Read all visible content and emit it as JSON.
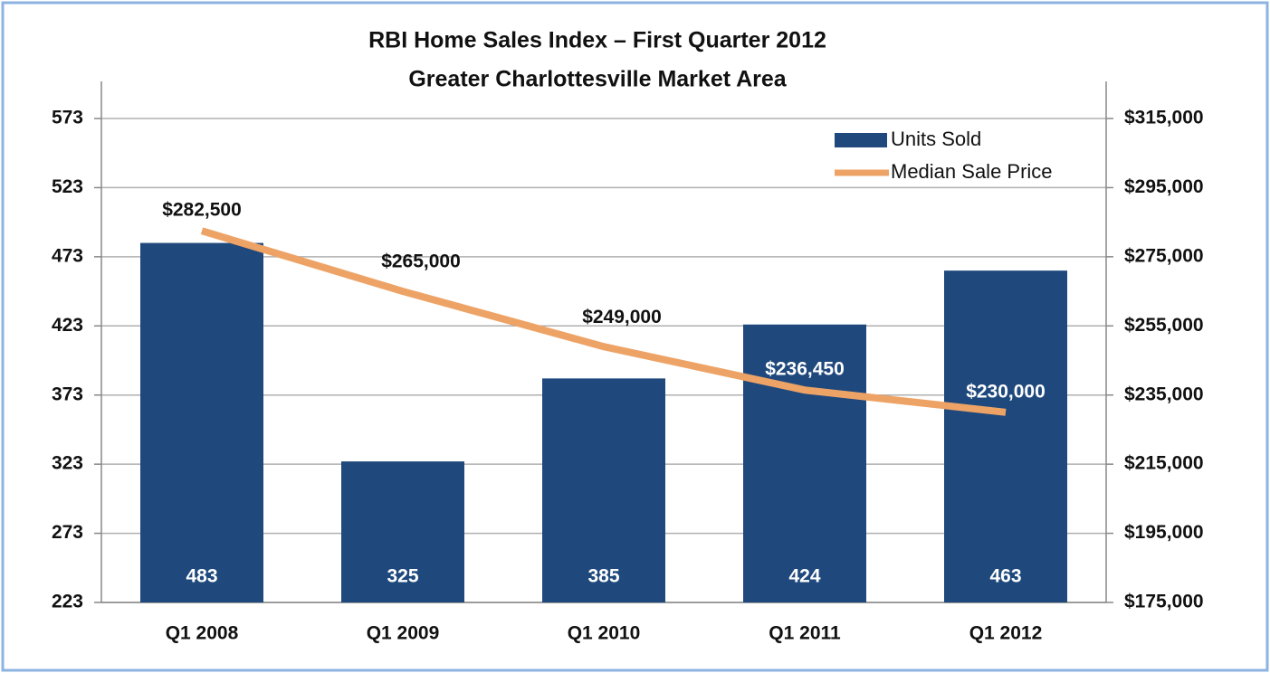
{
  "chart_data": {
    "type": "bar",
    "title": "RBI Home Sales Index – First Quarter 2012",
    "subtitle": "Greater Charlottesville Market Area",
    "categories": [
      "Q1 2008",
      "Q1 2009",
      "Q1 2010",
      "Q1 2011",
      "Q1 2012"
    ],
    "series": [
      {
        "name": "Units Sold",
        "type": "bar",
        "color": "#1f497d",
        "values": [
          483,
          325,
          385,
          424,
          463
        ]
      },
      {
        "name": "Median Sale Price",
        "type": "line",
        "axis": "y2",
        "color": "#eea366",
        "values": [
          282500,
          265000,
          249000,
          236450,
          230000
        ],
        "value_labels": [
          "$282,500",
          "$265,000",
          "$249,000",
          "$236,450",
          "$230,000"
        ]
      }
    ],
    "ylim": [
      223,
      573
    ],
    "yticks": [
      223,
      273,
      323,
      373,
      423,
      473,
      523,
      573
    ],
    "y2lim": [
      175000,
      315000
    ],
    "y2ticks": [
      {
        "value": 175000,
        "label": "$175,000"
      },
      {
        "value": 195000,
        "label": "$195,000"
      },
      {
        "value": 215000,
        "label": "$215,000"
      },
      {
        "value": 235000,
        "label": "$235,000"
      },
      {
        "value": 255000,
        "label": "$255,000"
      },
      {
        "value": 275000,
        "label": "$275,000"
      },
      {
        "value": 295000,
        "label": "$295,000"
      },
      {
        "value": 315000,
        "label": "$315,000"
      }
    ],
    "grid": true,
    "legend": "upper right"
  }
}
